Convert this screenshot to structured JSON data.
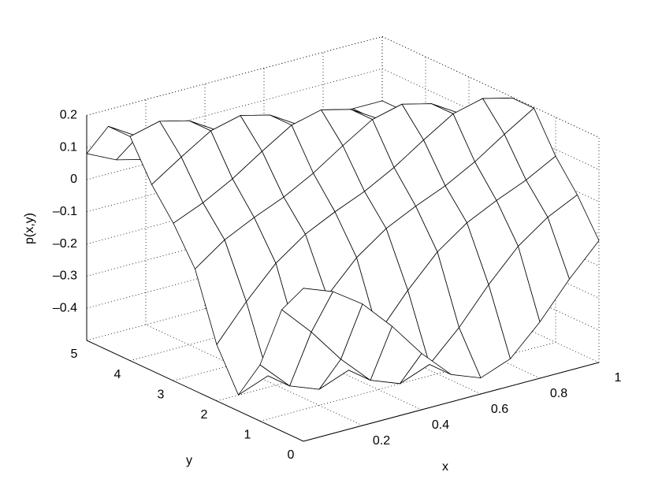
{
  "chart_data": {
    "type": "surface",
    "xlabel": "x",
    "ylabel": "y",
    "zlabel": "p(x,y)",
    "x": [
      0,
      0.1,
      0.2,
      0.3,
      0.4,
      0.5,
      0.6,
      0.7,
      0.8,
      0.9,
      1
    ],
    "y": [
      0,
      0.5,
      1,
      1.5,
      2,
      2.5,
      3,
      3.5,
      4,
      4.5,
      5
    ],
    "z": [
      [
        -0.024,
        -0.059,
        -0.122,
        -0.216,
        -0.325,
        -0.415,
        -0.45,
        -0.415,
        -0.325,
        -0.216,
        -0.121
      ],
      [
        -0.122,
        -0.216,
        -0.325,
        -0.415,
        -0.45,
        -0.415,
        -0.325,
        -0.216,
        -0.121,
        -0.055,
        -0.01
      ],
      [
        -0.325,
        -0.415,
        -0.45,
        -0.415,
        -0.325,
        -0.216,
        -0.121,
        -0.055,
        -0.01,
        0.029,
        0.079
      ],
      [
        -0.45,
        -0.415,
        -0.325,
        -0.216,
        -0.121,
        -0.055,
        -0.01,
        0.029,
        0.079,
        0.14,
        0.197
      ],
      [
        -0.325,
        -0.216,
        -0.121,
        -0.055,
        -0.01,
        0.029,
        0.079,
        0.14,
        0.197,
        0.22,
        0.197
      ],
      [
        -0.121,
        -0.055,
        -0.01,
        0.029,
        0.079,
        0.14,
        0.197,
        0.22,
        0.197,
        0.141,
        0.081
      ],
      [
        -0.01,
        0.029,
        0.079,
        0.14,
        0.197,
        0.22,
        0.197,
        0.141,
        0.081,
        0.037,
        0.014
      ],
      [
        0.079,
        0.14,
        0.197,
        0.22,
        0.197,
        0.141,
        0.081,
        0.037,
        0.014,
        0.004,
        0.001
      ],
      [
        0.197,
        0.22,
        0.197,
        0.141,
        0.081,
        0.037,
        0.014,
        0.004,
        0.001,
        0,
        0
      ],
      [
        0.197,
        0.141,
        0.081,
        0.037,
        0.014,
        0.004,
        0.001,
        0,
        0,
        0,
        0
      ],
      [
        0.081,
        0.037,
        0.014,
        0.004,
        0.001,
        0,
        0,
        0,
        0,
        0,
        0
      ]
    ],
    "xlim": [
      0,
      1
    ],
    "ylim": [
      0,
      5
    ],
    "zlim": [
      -0.5,
      0.2
    ],
    "xticks": [
      0.2,
      0.4,
      0.6,
      0.8,
      1
    ],
    "yticks": [
      0,
      1,
      2,
      3,
      4,
      5
    ],
    "zticks": [
      {
        "value": -0.4,
        "label": "–0.4"
      },
      {
        "value": -0.3,
        "label": "–0.3"
      },
      {
        "value": -0.2,
        "label": "–0.2"
      },
      {
        "value": -0.1,
        "label": "–0.1"
      },
      0,
      0.1,
      0.2
    ],
    "grid": true,
    "color": "#000000",
    "face_color": "#ffffff"
  }
}
